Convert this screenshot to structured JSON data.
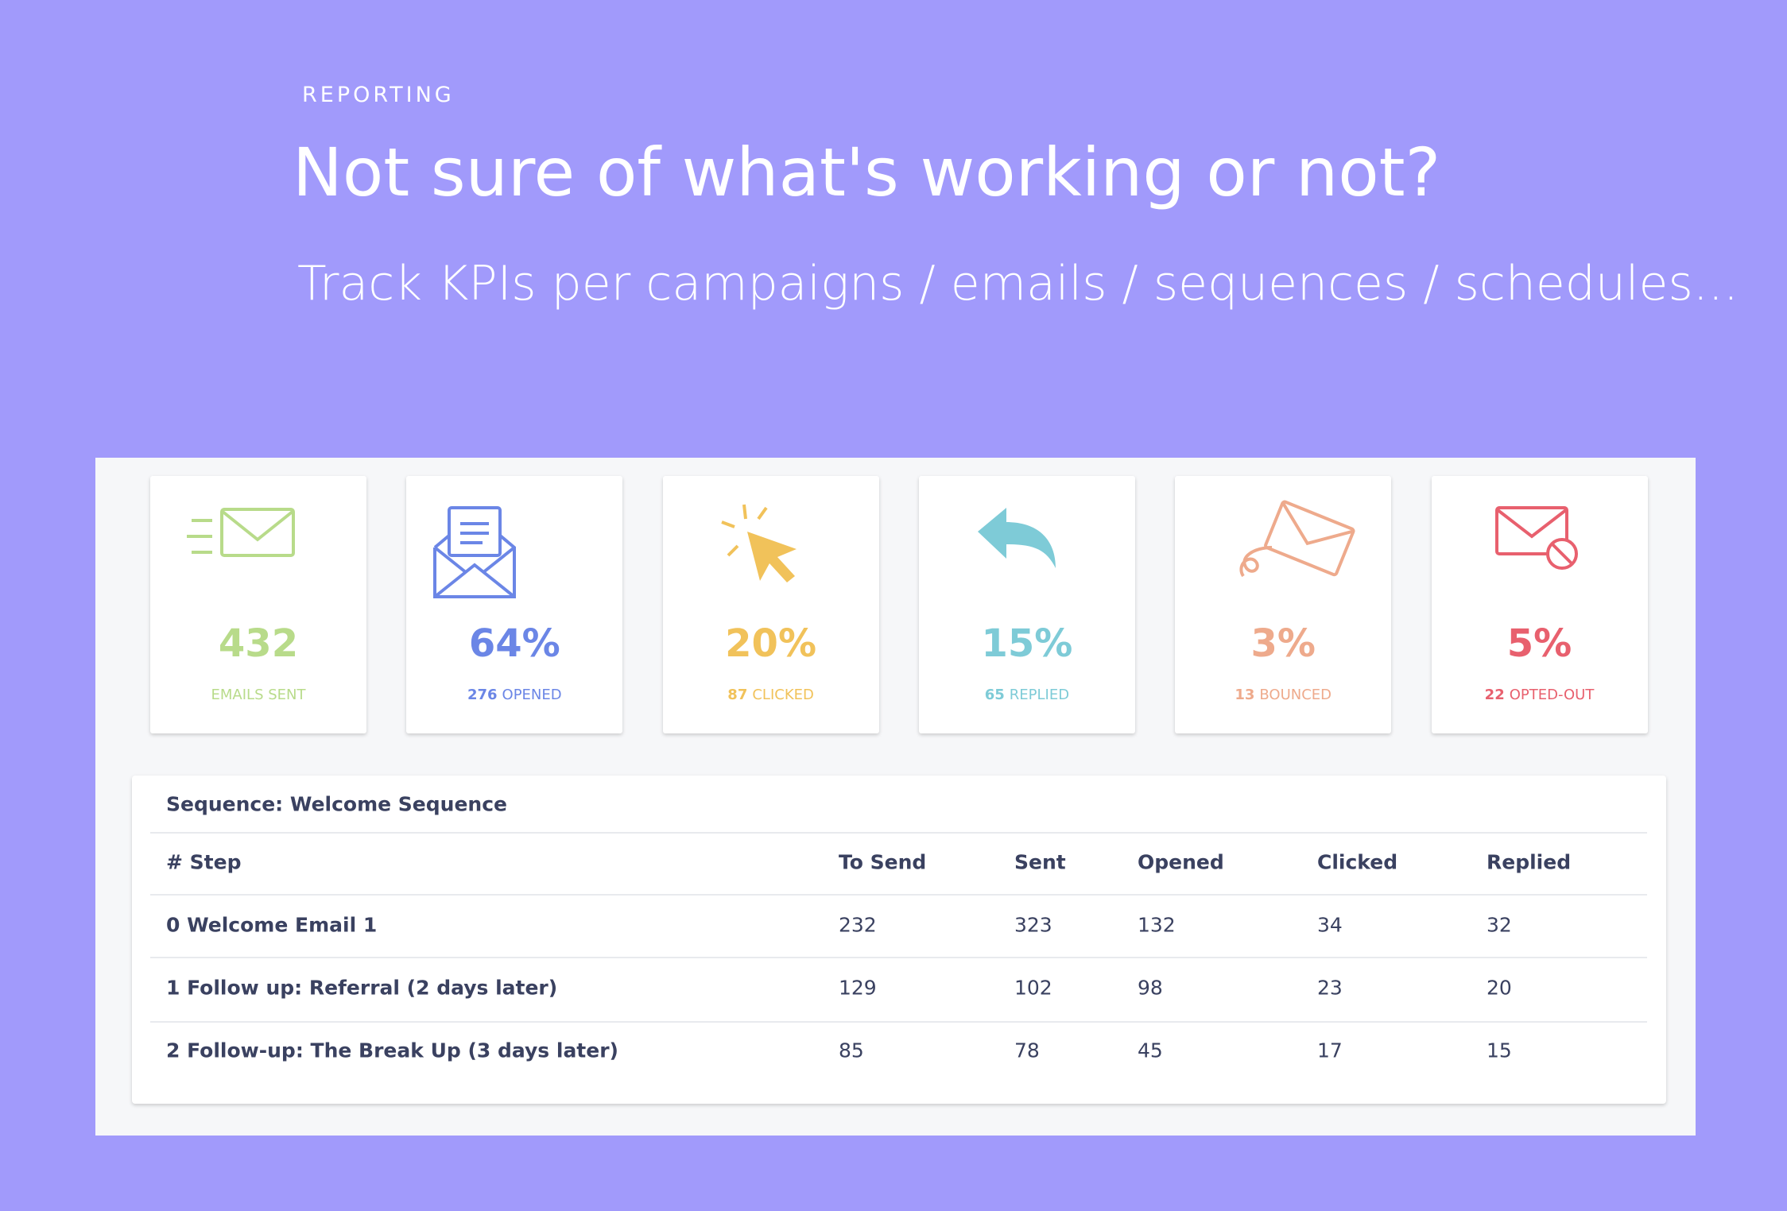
{
  "header": {
    "eyebrow": "REPORTING",
    "title": "Not sure of what's working or not?",
    "subtitle": "Track KPIs per campaigns / emails / sequences / schedules..."
  },
  "kpis": [
    {
      "value": "432",
      "label": "EMAILS SENT",
      "color": "#b8db8a"
    },
    {
      "value": "64%",
      "count": "276",
      "label": "OPENED",
      "color": "#6b86e6"
    },
    {
      "value": "20%",
      "count": "87",
      "label": "CLICKED",
      "color": "#f1c25a"
    },
    {
      "value": "15%",
      "count": "65",
      "label": "REPLIED",
      "color": "#7ecbd7"
    },
    {
      "value": "3%",
      "count": "13",
      "label": "BOUNCED",
      "color": "#eeaa8c"
    },
    {
      "value": "5%",
      "count": "22",
      "label": "OPTED-OUT",
      "color": "#e8606e"
    }
  ],
  "table": {
    "title": "Sequence: Welcome Sequence",
    "columns": [
      "# Step",
      "To Send",
      "Sent",
      "Opened",
      "Clicked",
      "Replied"
    ],
    "rows": [
      [
        "0 Welcome Email 1",
        "232",
        "323",
        "132",
        "34",
        "32"
      ],
      [
        "1 Follow up: Referral (2 days later)",
        "129",
        "102",
        "98",
        "23",
        "20"
      ],
      [
        "2 Follow-up: The Break Up (3 days later)",
        "85",
        "78",
        "45",
        "17",
        "15"
      ]
    ]
  }
}
